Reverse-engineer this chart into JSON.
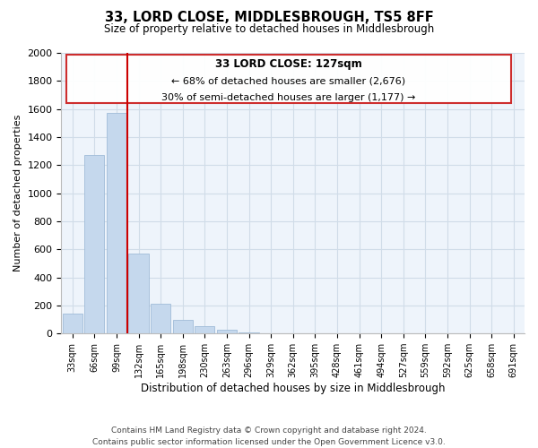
{
  "title": "33, LORD CLOSE, MIDDLESBROUGH, TS5 8FF",
  "subtitle": "Size of property relative to detached houses in Middlesbrough",
  "xlabel": "Distribution of detached houses by size in Middlesbrough",
  "ylabel": "Number of detached properties",
  "footer_line1": "Contains HM Land Registry data © Crown copyright and database right 2024.",
  "footer_line2": "Contains public sector information licensed under the Open Government Licence v3.0.",
  "bar_labels": [
    "33sqm",
    "66sqm",
    "99sqm",
    "132sqm",
    "165sqm",
    "198sqm",
    "230sqm",
    "263sqm",
    "296sqm",
    "329sqm",
    "362sqm",
    "395sqm",
    "428sqm",
    "461sqm",
    "494sqm",
    "527sqm",
    "559sqm",
    "592sqm",
    "625sqm",
    "658sqm",
    "691sqm"
  ],
  "bar_values": [
    140,
    1270,
    1570,
    570,
    215,
    95,
    55,
    30,
    5,
    0,
    0,
    0,
    0,
    0,
    0,
    0,
    0,
    0,
    0,
    0,
    0
  ],
  "bar_color": "#c5d8ed",
  "bar_edge_color": "#a0bcd8",
  "vline_color": "#cc0000",
  "ylim": [
    0,
    2000
  ],
  "yticks": [
    0,
    200,
    400,
    600,
    800,
    1000,
    1200,
    1400,
    1600,
    1800,
    2000
  ],
  "annotation_title": "33 LORD CLOSE: 127sqm",
  "annotation_line1": "← 68% of detached houses are smaller (2,676)",
  "annotation_line2": "30% of semi-detached houses are larger (1,177) →",
  "grid_color": "#d0dce8",
  "background_color": "#eef4fb"
}
